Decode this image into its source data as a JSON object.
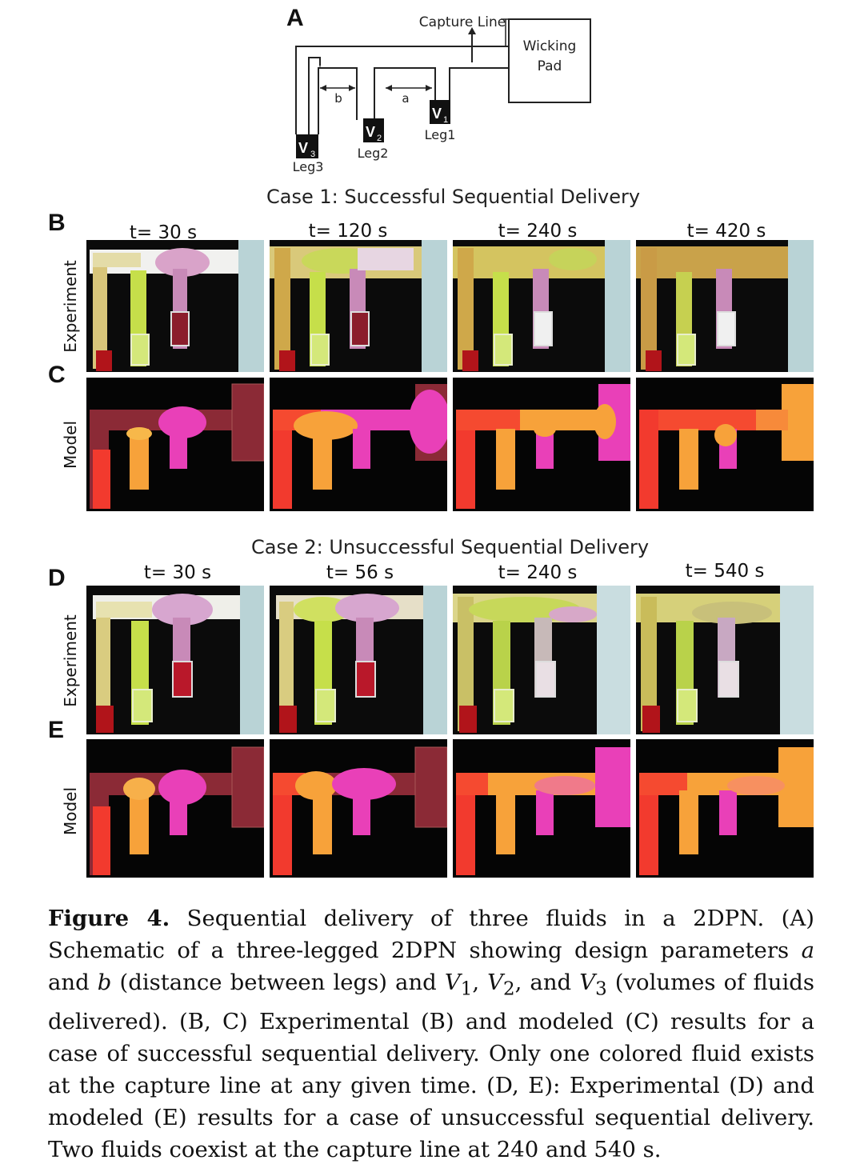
{
  "figure": {
    "schematic": {
      "panel_letter": "A",
      "capture_line": "Capture Line",
      "wicking_pad_line1": "Wicking",
      "wicking_pad_line2": "Pad",
      "dim_a": "a",
      "dim_b": "b",
      "leg1": "Leg1",
      "leg2": "Leg2",
      "leg3": "Leg3",
      "v1_main": "V",
      "v1_sub": "1",
      "v2_main": "V",
      "v2_sub": "2",
      "v3_main": "V",
      "v3_sub": "3"
    },
    "case1": {
      "title": "Case 1: Successful Sequential Delivery",
      "letter_exp": "B",
      "letter_model": "C",
      "row_exp": "Experiment",
      "row_model": "Model",
      "times": [
        "t= 30 s",
        "t= 120 s",
        "t= 240 s",
        "t= 420 s"
      ]
    },
    "case2": {
      "title": "Case 2: Unsuccessful Sequential Delivery",
      "letter_exp": "D",
      "letter_model": "E",
      "row_exp": "Experiment",
      "row_model": "Model",
      "times": [
        "t= 30 s",
        "t= 56 s",
        "t= 240 s",
        "t= 540 s"
      ]
    }
  },
  "caption": {
    "lead": "Figure 4.",
    "p1": " Sequential delivery of three fluids in a 2DPN. (A) Schematic of a three-legged 2DPN showing design parameters ",
    "a": "a",
    "p2": " and ",
    "b": "b",
    "p3": " (distance between legs) and ",
    "V": "V",
    "s1": "1",
    "sep1": ", ",
    "s2": "2",
    "sep2": ", and ",
    "s3": "3",
    "p4": " (volumes of fluids delivered). (B, C) Experimental (B) and modeled (C) results for a case of successful sequential delivery. Only one colored fluid exists at the capture line at any given time. (D, E): Experimental (D) and modeled (E) results for a case of unsuccessful sequential delivery. Two fluids coexist at the capture line at 240 and 540 s."
  }
}
